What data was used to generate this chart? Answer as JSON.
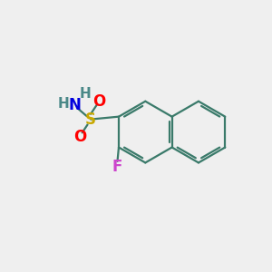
{
  "bg_color": "#efefef",
  "bond_color": "#3a7a6a",
  "bond_width": 1.6,
  "S_color": "#c8a800",
  "O_color": "#ff0000",
  "N_color": "#0000dd",
  "H_color": "#4a8888",
  "F_color": "#cc44cc",
  "figsize": [
    3.0,
    3.0
  ],
  "dpi": 100,
  "xlim": [
    0,
    10
  ],
  "ylim": [
    0,
    10
  ]
}
